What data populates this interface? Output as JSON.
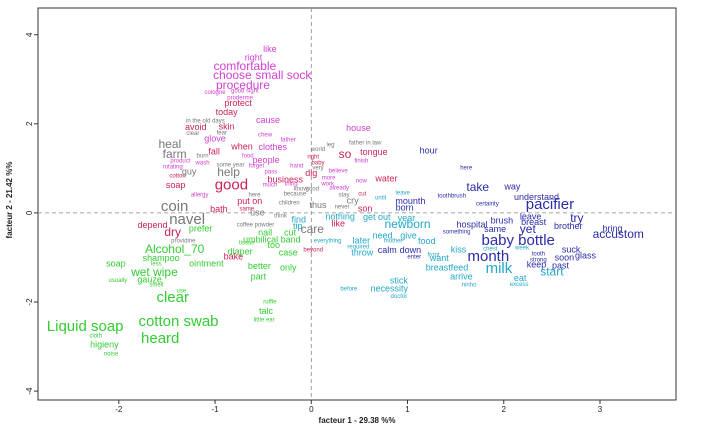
{
  "chart_data": {
    "type": "scatter",
    "x_label": "facteur  1 - 29.38 %%",
    "y_label": "facteur  2 - 21.42 %%",
    "xlim": [
      -2.84,
      3.79
    ],
    "ylim": [
      -4.2,
      4.6
    ],
    "xticks": [
      -2,
      -1,
      0,
      1,
      2,
      3
    ],
    "yticks": [
      -4,
      -2,
      0,
      2,
      4
    ],
    "series": [
      {
        "color": "#d23fd2",
        "labels": [
          "like",
          "right",
          "comfortable",
          "choose",
          "small sock",
          "procedure",
          "cologne",
          "good sight",
          "proderme",
          "cause",
          "chew",
          "father",
          "glove",
          "clothes",
          "food",
          "people",
          "product",
          "wash",
          "forget",
          "rotating",
          "pass",
          "much",
          "thing",
          "allergy",
          "house",
          "finish",
          "hand",
          "believe",
          "more",
          "work",
          "now",
          "already"
        ],
        "x": [
          -0.43,
          -0.6,
          -0.69,
          -0.82,
          -0.29,
          -0.71,
          -1.0,
          -0.69,
          -0.74,
          -0.45,
          -0.48,
          -0.24,
          -1.0,
          -0.4,
          -0.66,
          -0.47,
          -1.36,
          -1.13,
          -0.57,
          -1.44,
          -0.42,
          -0.43,
          -0.21,
          -1.16,
          0.49,
          0.52,
          -0.15,
          0.28,
          0.18,
          0.17,
          0.52,
          0.29
        ],
        "values": [
          3.66,
          3.48,
          3.28,
          3.08,
          3.08,
          2.85,
          2.7,
          2.74,
          2.58,
          2.07,
          1.75,
          1.64,
          1.66,
          1.46,
          1.28,
          1.17,
          1.17,
          1.12,
          1.06,
          1.03,
          0.92,
          0.63,
          0.65,
          0.4,
          1.89,
          1.17,
          1.06,
          0.94,
          0.79,
          0.65,
          0.72,
          0.56
        ],
        "sizes": [
          2,
          2,
          3,
          3,
          3,
          3,
          1,
          1,
          1,
          2,
          1,
          1,
          2,
          2,
          1,
          2,
          1,
          1,
          1,
          1,
          1,
          1,
          1,
          1,
          2,
          1,
          1,
          1,
          1,
          1,
          1,
          1
        ]
      },
      {
        "color": "#cc2255",
        "labels": [
          "protect",
          "today",
          "avoid",
          "skin",
          "when",
          "fall",
          "cotton",
          "business",
          "soap",
          "good",
          "put on",
          "bath",
          "same",
          "depend",
          "dry",
          "bake",
          "right",
          "so",
          "tongue",
          "baby",
          "dig",
          "water",
          "cut",
          "son",
          "like",
          "beyond"
        ],
        "x": [
          -0.76,
          -0.88,
          -1.2,
          -0.88,
          -0.72,
          -1.01,
          -1.39,
          -0.27,
          -1.41,
          -0.83,
          -0.64,
          -0.96,
          -0.67,
          -1.65,
          -1.44,
          -0.81,
          0.02,
          0.35,
          0.65,
          0.07,
          0.0,
          0.78,
          0.53,
          0.56,
          0.28,
          0.02
        ],
        "values": [
          2.45,
          2.25,
          1.91,
          1.93,
          1.48,
          1.37,
          0.83,
          0.74,
          0.61,
          0.61,
          0.25,
          0.07,
          0.09,
          -0.29,
          -0.45,
          -0.99,
          1.26,
          1.3,
          1.35,
          1.12,
          0.88,
          0.76,
          0.43,
          0.09,
          -0.25,
          -0.83
        ],
        "sizes": [
          2,
          2,
          2,
          2,
          2,
          2,
          1,
          2,
          2,
          4,
          2,
          2,
          1,
          2,
          3,
          2,
          1,
          3,
          2,
          1,
          2,
          2,
          1,
          2,
          2,
          1
        ]
      },
      {
        "color": "#777777",
        "labels": [
          "in the old days",
          "clear",
          "fear",
          "heal",
          "farm",
          "burn",
          "some year",
          "help",
          "guy",
          "here",
          "coin",
          "navel",
          "use",
          "think",
          "coffee powder",
          "providine",
          "leg",
          "father in law",
          "world",
          "very",
          "good",
          "know",
          "because",
          "stay",
          "cry",
          "children",
          "thus",
          "never",
          "care"
        ],
        "x": [
          -1.1,
          -1.23,
          -0.93,
          -1.47,
          -1.42,
          -1.13,
          -0.84,
          -0.86,
          -1.27,
          -0.59,
          -1.42,
          -1.29,
          -0.56,
          -0.32,
          -0.58,
          -1.33,
          0.2,
          0.56,
          0.07,
          0.07,
          0.01,
          -0.11,
          -0.17,
          0.34,
          0.43,
          -0.23,
          0.07,
          0.32,
          0.01
        ],
        "values": [
          2.07,
          1.78,
          1.8,
          1.53,
          1.3,
          1.28,
          1.08,
          0.9,
          0.92,
          0.4,
          0.13,
          -0.16,
          0.0,
          -0.07,
          -0.27,
          -0.63,
          1.53,
          1.57,
          1.42,
          1.01,
          0.54,
          0.54,
          0.43,
          0.4,
          0.27,
          0.22,
          0.16,
          0.13,
          -0.38
        ],
        "sizes": [
          1,
          1,
          1,
          3,
          3,
          1,
          1,
          3,
          2,
          1,
          4,
          4,
          2,
          1,
          1,
          1,
          1,
          1,
          1,
          1,
          1,
          1,
          1,
          1,
          2,
          1,
          2,
          1,
          3
        ]
      },
      {
        "color": "#33cc33",
        "labels": [
          "prefer",
          "nail",
          "cut",
          "umbilical band",
          "Alcohol_70",
          "tissue",
          "diaper",
          "too",
          "case",
          "shampoo",
          "soap",
          "less",
          "ointment",
          "better",
          "only",
          "wet wipe",
          "gauze",
          "part",
          "usually",
          "smell",
          "use",
          "clear",
          "ruffle",
          "talc",
          "Liquid soap",
          "cotton swab",
          "little ear",
          "heard",
          "cloth",
          "higieny",
          "noise"
        ],
        "x": [
          -1.15,
          -0.48,
          -0.22,
          -0.41,
          -1.42,
          -0.67,
          -0.74,
          -0.39,
          -0.24,
          -1.56,
          -2.03,
          -1.61,
          -1.09,
          -0.54,
          -0.24,
          -1.63,
          -1.68,
          -0.55,
          -2.01,
          -1.61,
          -1.35,
          -1.44,
          -0.43,
          -0.47,
          -2.35,
          -1.38,
          -0.49,
          -1.57,
          -2.24,
          -2.15,
          -2.08
        ],
        "values": [
          -0.36,
          -0.45,
          -0.45,
          -0.61,
          -0.83,
          -0.67,
          -0.88,
          -0.74,
          -0.9,
          -1.03,
          -1.15,
          -1.15,
          -1.15,
          -1.21,
          -1.24,
          -1.35,
          -1.51,
          -1.44,
          -1.51,
          -1.62,
          -1.75,
          -1.91,
          -2.0,
          -2.22,
          -2.56,
          -2.45,
          -2.4,
          -2.83,
          -2.76,
          -2.97,
          -3.17
        ],
        "sizes": [
          2,
          2,
          2,
          2,
          3,
          1,
          2,
          2,
          2,
          2,
          2,
          1,
          2,
          2,
          2,
          3,
          2,
          2,
          1,
          1,
          1,
          4,
          1,
          2,
          4,
          4,
          1,
          4,
          1,
          2,
          1
        ]
      },
      {
        "color": "#22a7c9",
        "labels": [
          "leave",
          "until",
          "find",
          "nothing",
          "get out",
          "year",
          "newborn",
          "tip",
          "everything",
          "need",
          "give",
          "later",
          "mother",
          "food",
          "required",
          "throw",
          "before",
          "stick",
          "necessity",
          "doctor",
          "kiss",
          "chest",
          "week",
          "front",
          "want",
          "breastfeed",
          "milk",
          "start",
          "arrive",
          "eat",
          "ninho",
          "excess"
        ],
        "x": [
          0.95,
          0.72,
          -0.13,
          0.3,
          0.68,
          0.99,
          1.0,
          -0.14,
          0.17,
          0.74,
          1.01,
          0.52,
          0.85,
          1.2,
          0.49,
          0.53,
          0.39,
          0.91,
          0.81,
          0.91,
          1.53,
          1.86,
          2.19,
          1.27,
          1.33,
          1.41,
          1.95,
          2.5,
          1.56,
          2.17,
          1.64,
          2.16
        ],
        "values": [
          0.45,
          0.34,
          -0.16,
          -0.09,
          -0.11,
          -0.13,
          -0.27,
          -0.31,
          -0.63,
          -0.52,
          -0.52,
          -0.63,
          -0.63,
          -0.65,
          -0.76,
          -0.9,
          -1.71,
          -1.53,
          -1.71,
          -1.87,
          -0.83,
          -0.81,
          -0.79,
          -0.94,
          -1.03,
          -1.24,
          -1.26,
          -1.33,
          -1.44,
          -1.48,
          -1.62,
          -1.6
        ],
        "sizes": [
          1,
          1,
          2,
          2,
          2,
          2,
          3,
          2,
          1,
          2,
          2,
          2,
          1,
          2,
          1,
          2,
          1,
          2,
          2,
          1,
          2,
          1,
          1,
          1,
          2,
          2,
          4,
          3,
          2,
          2,
          1,
          1
        ]
      },
      {
        "color": "#2b2ba8",
        "labels": [
          "mounth",
          "born",
          "calm",
          "down",
          "enter",
          "hour",
          "here",
          "take",
          "way",
          "toothbrush",
          "understand",
          "certainty",
          "pacifier",
          "hospital",
          "brush",
          "leave",
          "try",
          "something",
          "same",
          "yet",
          "breast",
          "brother",
          "bring",
          "accustom",
          "baby bottle",
          "suck",
          "month",
          "tooth",
          "strong",
          "soon",
          "glass",
          "keep",
          "past"
        ],
        "x": [
          1.03,
          0.97,
          0.79,
          1.03,
          1.07,
          1.22,
          1.61,
          1.73,
          2.09,
          1.46,
          2.34,
          1.83,
          2.48,
          1.67,
          1.98,
          2.28,
          2.76,
          1.51,
          1.91,
          2.25,
          2.31,
          2.67,
          3.13,
          3.19,
          2.15,
          2.7,
          1.84,
          2.36,
          2.36,
          2.63,
          2.85,
          2.34,
          2.59
        ],
        "values": [
          0.25,
          0.11,
          -0.85,
          -0.85,
          -0.99,
          1.39,
          1.01,
          0.56,
          0.58,
          0.38,
          0.34,
          0.2,
          0.18,
          -0.27,
          -0.18,
          -0.09,
          -0.13,
          -0.43,
          -0.38,
          -0.38,
          -0.22,
          -0.31,
          -0.36,
          -0.49,
          -0.63,
          -0.83,
          -0.99,
          -0.92,
          -1.06,
          -1.01,
          -0.97,
          -1.17,
          -1.19
        ],
        "sizes": [
          2,
          2,
          2,
          2,
          1,
          2,
          1,
          3,
          2,
          1,
          2,
          1,
          4,
          2,
          2,
          2,
          3,
          1,
          2,
          3,
          2,
          2,
          2,
          3,
          4,
          2,
          4,
          1,
          1,
          2,
          2,
          2,
          2
        ]
      }
    ]
  }
}
